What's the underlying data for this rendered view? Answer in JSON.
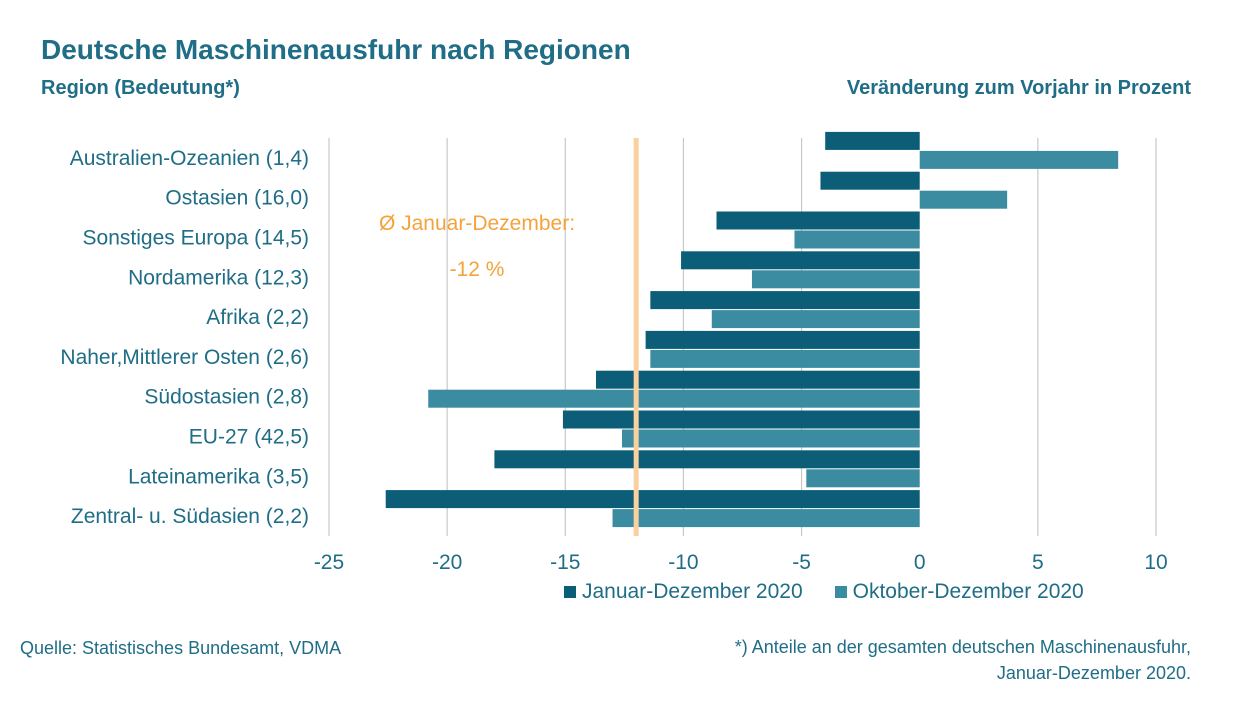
{
  "header": {
    "title": "Deutsche Maschinenausfuhr nach Regionen",
    "left_subtitle": "Region (Bedeutung*)",
    "right_subtitle": "Veränderung zum Vorjahr in Prozent"
  },
  "annotation": {
    "line1": "Ø Januar-Dezember:",
    "line2": "-12 %",
    "color": "#f5a23c",
    "line_color": "#fbd0a0"
  },
  "footer": {
    "source": "Quelle: Statistisches Bundesamt, VDMA",
    "footnote_line1": "*) Anteile an der gesamten deutschen Maschinenausfuhr,",
    "footnote_line2": "Januar-Dezember 2020."
  },
  "colors": {
    "text": "#1f6d86",
    "series1": "#0b5d78",
    "series2": "#3c8ca1",
    "grid": "#c8c8c8"
  },
  "chart_data": {
    "type": "bar",
    "orientation": "horizontal",
    "categories": [
      "Australien-Ozeanien (1,4)",
      "Ostasien (16,0)",
      "Sonstiges Europa (14,5)",
      "Nordamerika (12,3)",
      "Afrika (2,2)",
      "Naher,Mittlerer Osten (2,6)",
      "Südostasien (2,8)",
      "EU-27 (42,5)",
      "Lateinamerika (3,5)",
      "Zentral- u. Südasien (2,2)"
    ],
    "series": [
      {
        "name": "Januar-Dezember 2020",
        "values": [
          -4.0,
          -4.2,
          -8.6,
          -10.1,
          -11.4,
          -11.6,
          -13.7,
          -15.1,
          -18.0,
          -22.6
        ]
      },
      {
        "name": "Oktober-Dezember 2020",
        "values": [
          8.4,
          3.7,
          -5.3,
          -7.1,
          -8.8,
          -11.4,
          -20.8,
          -12.6,
          -4.8,
          -13.0
        ]
      }
    ],
    "xlim": [
      -25,
      10
    ],
    "xticks": [
      -25,
      -20,
      -15,
      -10,
      -5,
      0,
      5,
      10
    ],
    "reference_line": -12,
    "grid": true,
    "legend_position": "bottom"
  }
}
